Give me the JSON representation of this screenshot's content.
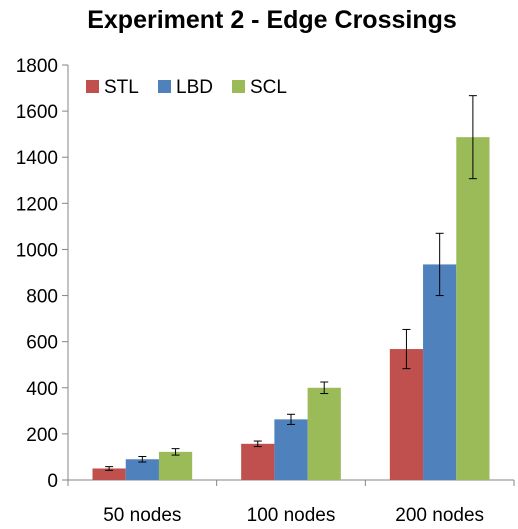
{
  "chart_data": {
    "type": "bar",
    "title": "Experiment 2 - Edge Crossings",
    "xlabel": "",
    "ylabel": "",
    "categories": [
      "50 nodes",
      "100 nodes",
      "200 nodes"
    ],
    "series": [
      {
        "name": "STL",
        "color": "#c0504d",
        "values": [
          50,
          157,
          568
        ],
        "errors": [
          8,
          12,
          85
        ]
      },
      {
        "name": "LBD",
        "color": "#4f81bd",
        "values": [
          90,
          263,
          935
        ],
        "errors": [
          12,
          22,
          135
        ]
      },
      {
        "name": "SCL",
        "color": "#9bbb59",
        "values": [
          122,
          400,
          1487
        ],
        "errors": [
          14,
          25,
          180
        ]
      }
    ],
    "ylim": [
      0,
      1800
    ],
    "yticks": [
      0,
      200,
      400,
      600,
      800,
      1000,
      1200,
      1400,
      1600,
      1800
    ],
    "grid": false,
    "legend": "top-left"
  }
}
